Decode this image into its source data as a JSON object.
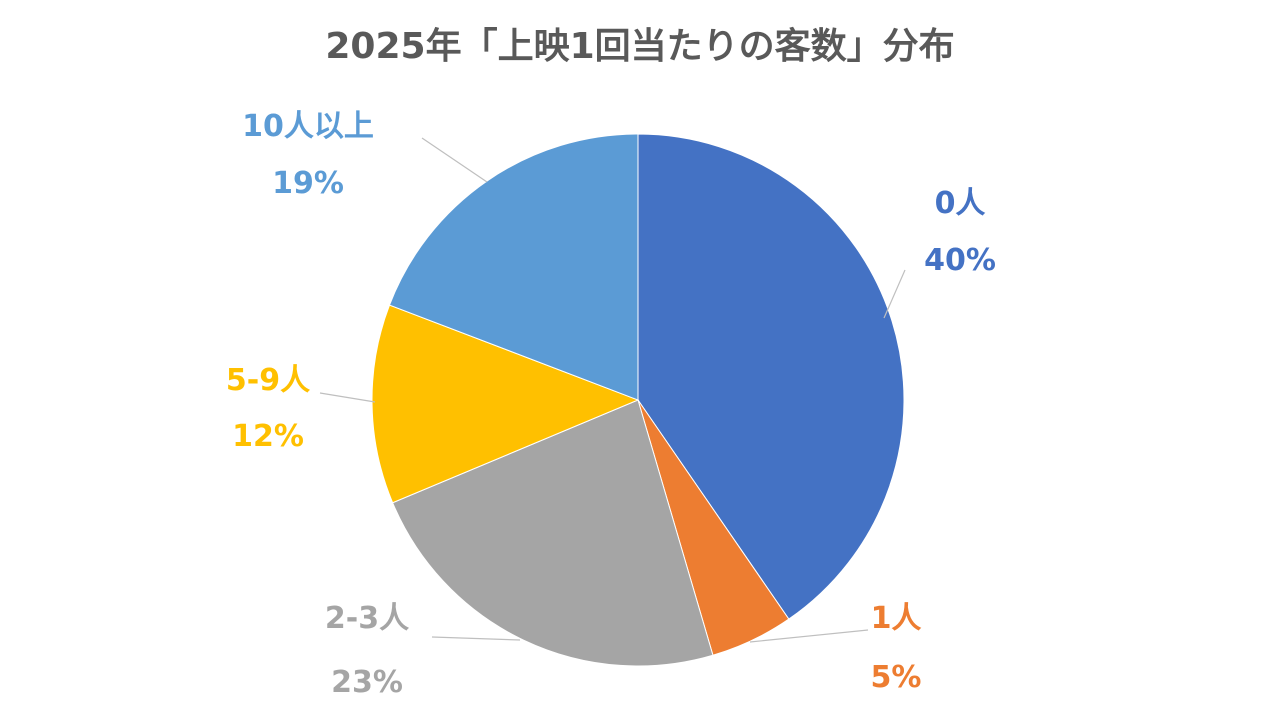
{
  "chart_data": {
    "type": "pie",
    "title": "2025年「上映1回当たりの客数」分布",
    "categories": [
      "0人",
      "1人",
      "2-3人",
      "5-9人",
      "10人以上"
    ],
    "values": [
      40,
      5,
      23,
      12,
      19
    ],
    "value_labels": [
      "40%",
      "5%",
      "23%",
      "12%",
      "19%"
    ],
    "colors": [
      "#4472C4",
      "#ED7D31",
      "#A5A5A5",
      "#FFC000",
      "#5B9BD5"
    ],
    "legend": "none",
    "data_labels": "outside with leader lines"
  }
}
